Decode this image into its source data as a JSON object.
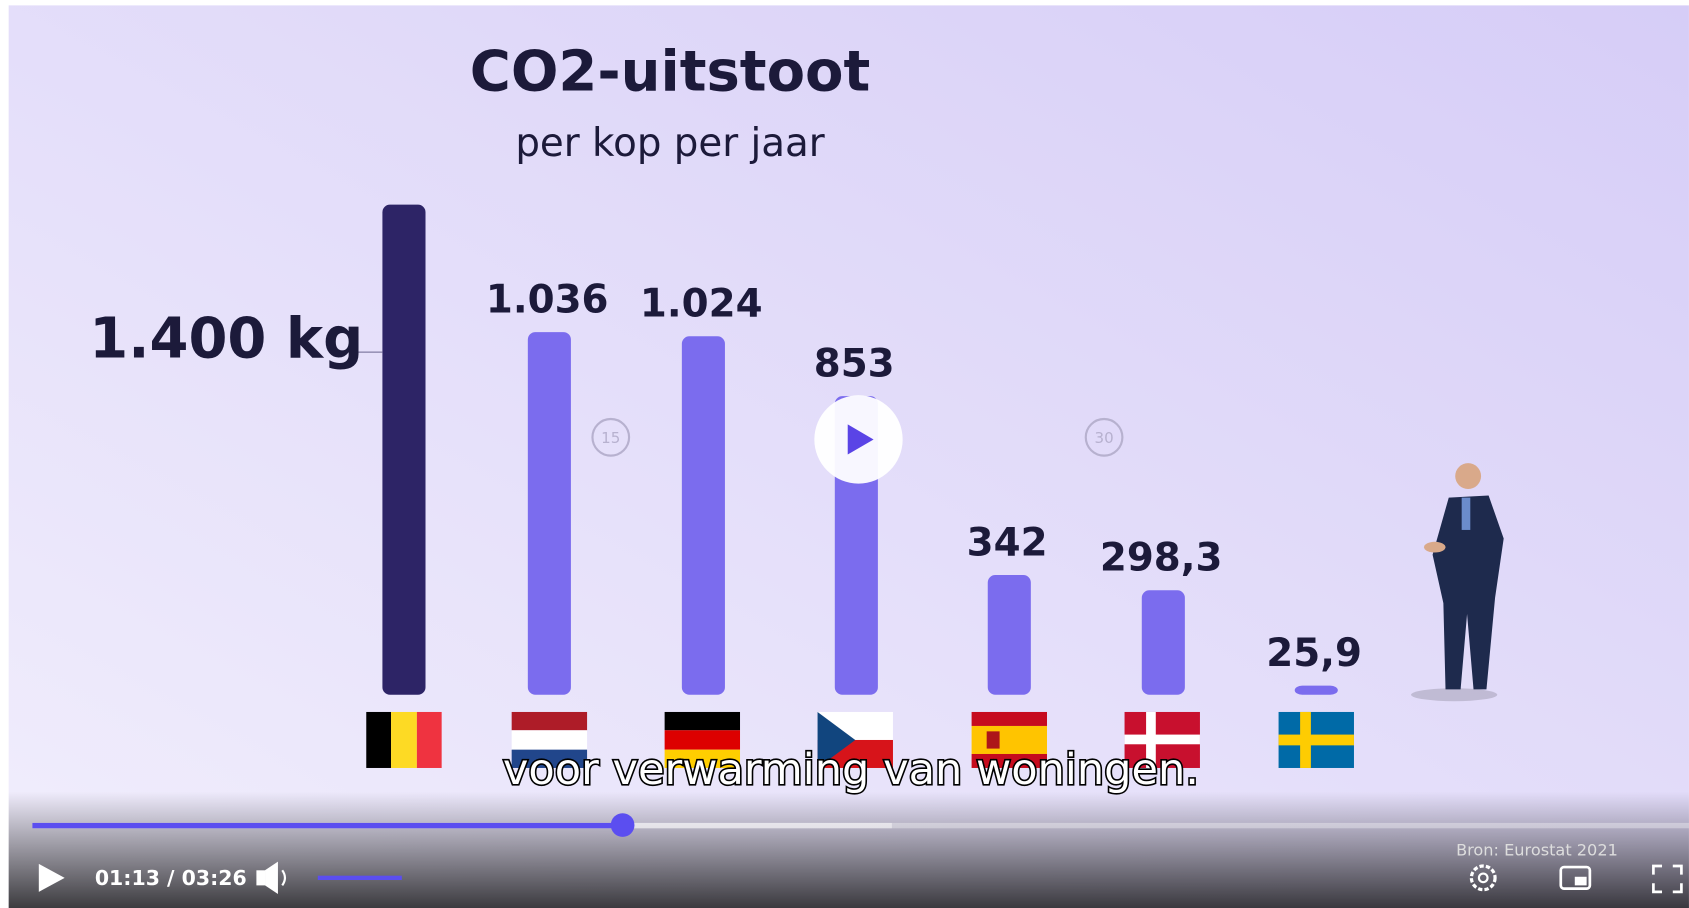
{
  "chart_data": {
    "type": "bar",
    "title": "CO2-uitstoot",
    "subtitle": "per kop per jaar",
    "categories": [
      null,
      null,
      null,
      null,
      null,
      null,
      null
    ],
    "values": [
      1400,
      1036,
      1024,
      853,
      342,
      298.3,
      25.9
    ],
    "value_labels": [
      "1.400 kg",
      "1.036",
      "1.024",
      "853",
      "342",
      "298,3",
      "25,9"
    ],
    "colors": [
      "#2d2466",
      "#7b6cee",
      "#7b6cee",
      "#7b6cee",
      "#7b6cee",
      "#7b6cee",
      "#7b6cee"
    ],
    "ylim": [
      0,
      1400
    ],
    "source": "Bron: Eurostat 2021"
  },
  "caption": "voor verwarming van woningen.",
  "player": {
    "time": "01:13 / 03:26",
    "skip_back": "15",
    "skip_forward": "30"
  }
}
